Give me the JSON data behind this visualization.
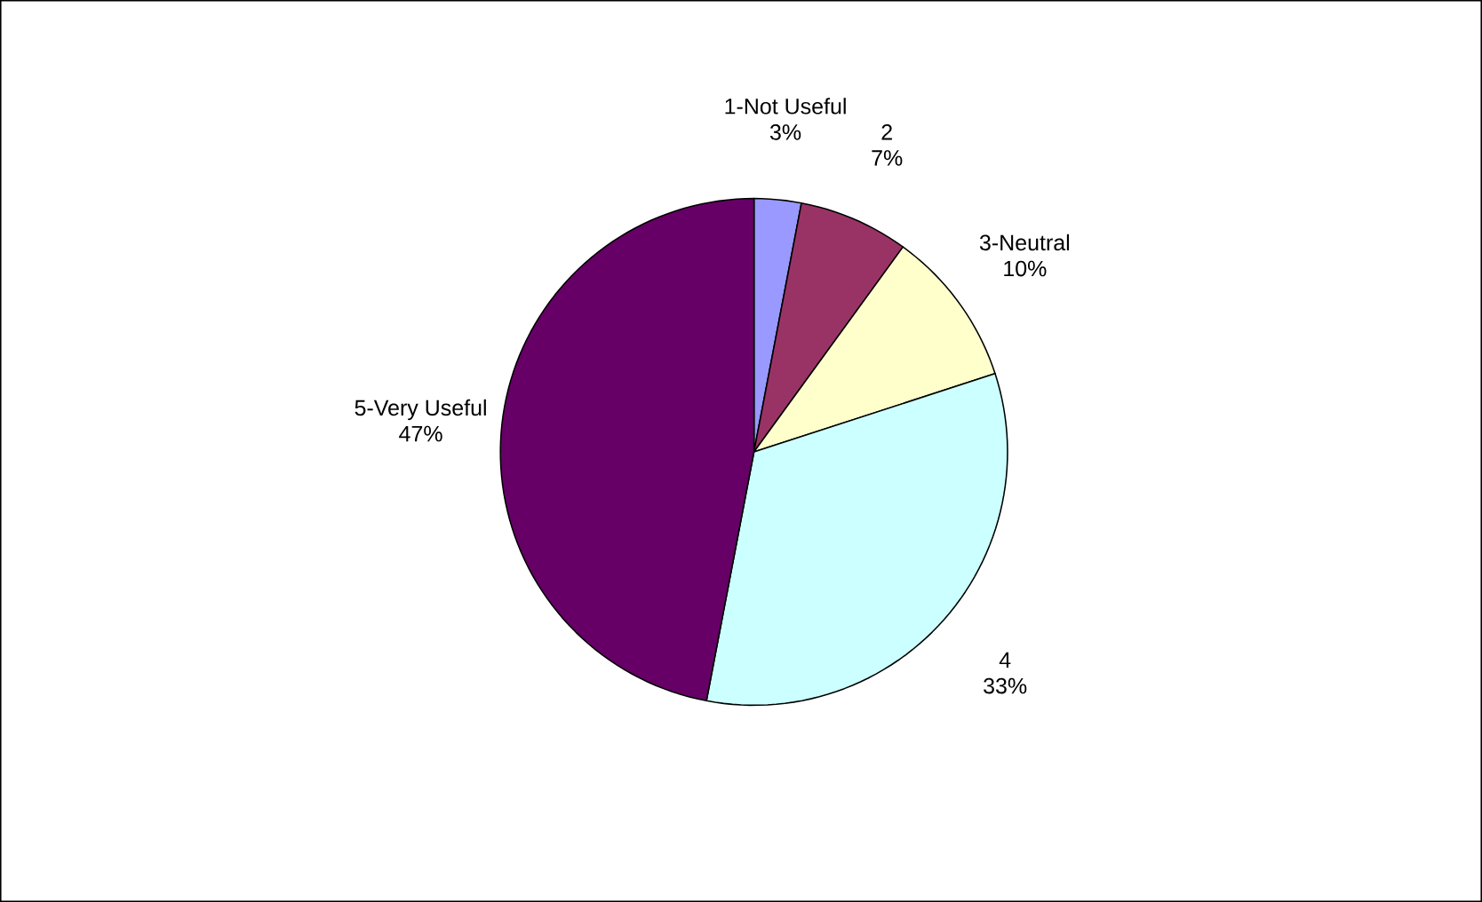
{
  "chart_data": {
    "type": "pie",
    "categories": [
      "1-Not Useful",
      "2",
      "3-Neutral",
      "4",
      "5-Very Useful"
    ],
    "values": [
      3,
      7,
      10,
      33,
      47
    ],
    "colors": [
      "#9999ff",
      "#993366",
      "#ffffcc",
      "#ccffff",
      "#660066"
    ],
    "value_labels": [
      "3%",
      "7%",
      "10%",
      "33%",
      "47%"
    ]
  }
}
